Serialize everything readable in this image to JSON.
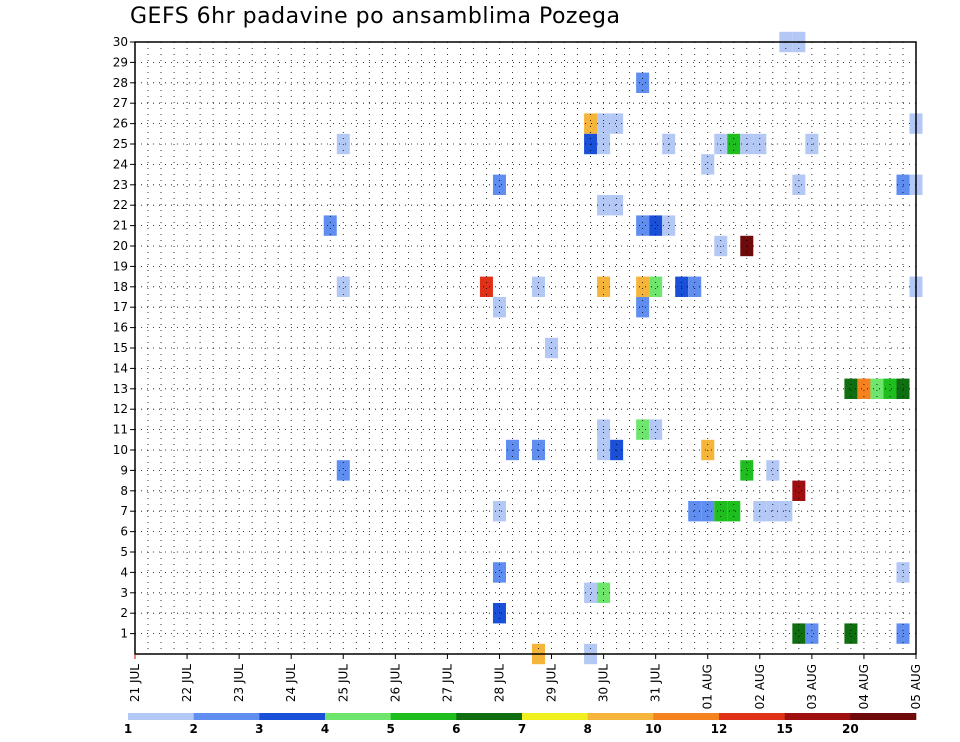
{
  "chart_data": {
    "type": "heatmap",
    "title": "GEFS 6hr padavine po ansamblima Pozega",
    "xlabel": "",
    "ylabel": "",
    "x_start_label": "21 JUL",
    "x_tick_labels": [
      "21 JUL",
      "22 JUL",
      "23 JUL",
      "24 JUL",
      "25 JUL",
      "26 JUL",
      "27 JUL",
      "28 JUL",
      "29 JUL",
      "30 JUL",
      "31 JUL",
      "01 AUG",
      "02 AUG",
      "03 AUG",
      "04 AUG",
      "05 AUG"
    ],
    "x_range_steps": [
      0,
      60
    ],
    "y_tick_labels": [
      "1",
      "2",
      "3",
      "4",
      "5",
      "6",
      "7",
      "8",
      "9",
      "10",
      "11",
      "12",
      "13",
      "14",
      "15",
      "16",
      "17",
      "18",
      "19",
      "20",
      "21",
      "22",
      "23",
      "24",
      "25",
      "26",
      "27",
      "28",
      "29",
      "30"
    ],
    "y_range": [
      0,
      30
    ],
    "grid": true,
    "colorbar": {
      "colors": [
        "#b4c8f5",
        "#5f8ef0",
        "#1a4fd8",
        "#6ee66e",
        "#1fbe1f",
        "#0f6e0f",
        "#f0f01e",
        "#f5b43a",
        "#f5821e",
        "#e03219",
        "#a00f0f",
        "#6e0a0a"
      ],
      "labels": [
        "1",
        "2",
        "3",
        "4",
        "5",
        "6",
        "7",
        "8",
        "10",
        "12",
        "15",
        "20"
      ]
    },
    "cells": [
      {
        "step": 50,
        "member": 30,
        "c": 0
      },
      {
        "step": 51,
        "member": 30,
        "c": 0
      },
      {
        "step": 39,
        "member": 28,
        "c": 1
      },
      {
        "step": 35,
        "member": 26,
        "c": 7
      },
      {
        "step": 36,
        "member": 26,
        "c": 0
      },
      {
        "step": 37,
        "member": 26,
        "c": 0
      },
      {
        "step": 60,
        "member": 26,
        "c": 0
      },
      {
        "step": 16,
        "member": 25,
        "c": 0
      },
      {
        "step": 35,
        "member": 25,
        "c": 2
      },
      {
        "step": 36,
        "member": 25,
        "c": 0
      },
      {
        "step": 41,
        "member": 25,
        "c": 0
      },
      {
        "step": 45,
        "member": 25,
        "c": 0
      },
      {
        "step": 46,
        "member": 25,
        "c": 4
      },
      {
        "step": 47,
        "member": 25,
        "c": 0
      },
      {
        "step": 48,
        "member": 25,
        "c": 0
      },
      {
        "step": 52,
        "member": 25,
        "c": 0
      },
      {
        "step": 44,
        "member": 24,
        "c": 0
      },
      {
        "step": 28,
        "member": 23,
        "c": 1
      },
      {
        "step": 51,
        "member": 23,
        "c": 0
      },
      {
        "step": 59,
        "member": 23,
        "c": 1
      },
      {
        "step": 60,
        "member": 23,
        "c": 0
      },
      {
        "step": 36,
        "member": 22,
        "c": 0
      },
      {
        "step": 37,
        "member": 22,
        "c": 0
      },
      {
        "step": 15,
        "member": 21,
        "c": 1
      },
      {
        "step": 39,
        "member": 21,
        "c": 1
      },
      {
        "step": 40,
        "member": 21,
        "c": 2
      },
      {
        "step": 41,
        "member": 21,
        "c": 0
      },
      {
        "step": 45,
        "member": 20,
        "c": 0
      },
      {
        "step": 47,
        "member": 20,
        "c": 11
      },
      {
        "step": 16,
        "member": 18,
        "c": 0
      },
      {
        "step": 27,
        "member": 18,
        "c": 9
      },
      {
        "step": 31,
        "member": 18,
        "c": 0
      },
      {
        "step": 36,
        "member": 18,
        "c": 7
      },
      {
        "step": 39,
        "member": 18,
        "c": 7
      },
      {
        "step": 40,
        "member": 18,
        "c": 3
      },
      {
        "step": 42,
        "member": 18,
        "c": 2
      },
      {
        "step": 43,
        "member": 18,
        "c": 1
      },
      {
        "step": 60,
        "member": 18,
        "c": 0
      },
      {
        "step": 28,
        "member": 17,
        "c": 0
      },
      {
        "step": 39,
        "member": 17,
        "c": 1
      },
      {
        "step": 32,
        "member": 15,
        "c": 0
      },
      {
        "step": 55,
        "member": 13,
        "c": 5
      },
      {
        "step": 56,
        "member": 13,
        "c": 8
      },
      {
        "step": 57,
        "member": 13,
        "c": 3
      },
      {
        "step": 58,
        "member": 13,
        "c": 4
      },
      {
        "step": 59,
        "member": 13,
        "c": 5
      },
      {
        "step": 36,
        "member": 11,
        "c": 0
      },
      {
        "step": 39,
        "member": 11,
        "c": 3
      },
      {
        "step": 40,
        "member": 11,
        "c": 0
      },
      {
        "step": 29,
        "member": 10,
        "c": 1
      },
      {
        "step": 31,
        "member": 10,
        "c": 1
      },
      {
        "step": 36,
        "member": 10,
        "c": 0
      },
      {
        "step": 37,
        "member": 10,
        "c": 2
      },
      {
        "step": 44,
        "member": 10,
        "c": 7
      },
      {
        "step": 16,
        "member": 9,
        "c": 1
      },
      {
        "step": 47,
        "member": 9,
        "c": 4
      },
      {
        "step": 49,
        "member": 9,
        "c": 0
      },
      {
        "step": 51,
        "member": 8,
        "c": 10
      },
      {
        "step": 28,
        "member": 7,
        "c": 0
      },
      {
        "step": 43,
        "member": 7,
        "c": 1
      },
      {
        "step": 44,
        "member": 7,
        "c": 1
      },
      {
        "step": 45,
        "member": 7,
        "c": 4
      },
      {
        "step": 46,
        "member": 7,
        "c": 4
      },
      {
        "step": 48,
        "member": 7,
        "c": 0
      },
      {
        "step": 49,
        "member": 7,
        "c": 0
      },
      {
        "step": 50,
        "member": 7,
        "c": 0
      },
      {
        "step": 28,
        "member": 4,
        "c": 1
      },
      {
        "step": 59,
        "member": 4,
        "c": 0
      },
      {
        "step": 35,
        "member": 3,
        "c": 0
      },
      {
        "step": 36,
        "member": 3,
        "c": 3
      },
      {
        "step": 28,
        "member": 2,
        "c": 2
      },
      {
        "step": 51,
        "member": 1,
        "c": 5
      },
      {
        "step": 52,
        "member": 1,
        "c": 1
      },
      {
        "step": 55,
        "member": 1,
        "c": 5
      },
      {
        "step": 59,
        "member": 1,
        "c": 1
      },
      {
        "step": 31,
        "member": 0,
        "c": 7
      },
      {
        "step": 35,
        "member": 0,
        "c": 0
      }
    ]
  }
}
